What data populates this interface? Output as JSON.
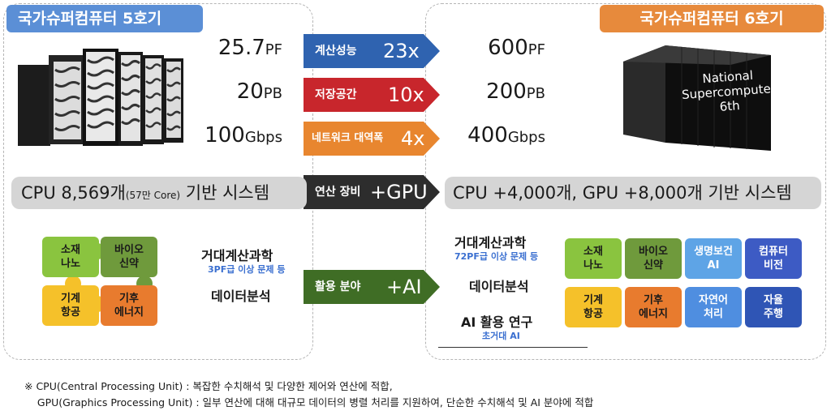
{
  "left": {
    "title": "국가슈퍼컴퓨터 5호기",
    "specs": [
      {
        "num": "25.7",
        "unit": "PF"
      },
      {
        "num": "20",
        "unit": "PB"
      },
      {
        "num": "100",
        "unit": "Gbps"
      }
    ],
    "system": {
      "main": "CPU 8,569개",
      "small": "(57만 Core)",
      "tail": " 기반 시스템"
    },
    "puzzle": [
      {
        "label": "소재\n나노",
        "color": "#8ac43f"
      },
      {
        "label": "바이오\n신약",
        "color": "#6f9a3c"
      },
      {
        "label": "기계\n항공",
        "color": "#f5c12a"
      },
      {
        "label": "기후\n에너지",
        "color": "#e87b2e"
      }
    ],
    "uses": [
      {
        "main": "거대계산과학",
        "sub": "3PF급 이상 문제 등"
      },
      {
        "main": "데이터분석",
        "sub": ""
      }
    ]
  },
  "middle": [
    {
      "label": "계산성능",
      "big": "23x",
      "color": "#2f63b0"
    },
    {
      "label": "저장공간",
      "big": "10x",
      "color": "#c8262c"
    },
    {
      "label": "네트워크 대역폭",
      "big": "4x",
      "color": "#e8862f"
    },
    {
      "label": "연산 장비",
      "big": "+GPU",
      "color": "#2d2d2d"
    },
    {
      "label": "활용 분야",
      "big": "+AI",
      "color": "#3f6d25"
    }
  ],
  "right": {
    "title": "국가슈퍼컴퓨터 6호기",
    "server_text": [
      "National",
      "Supercomputer",
      "6th"
    ],
    "specs": [
      {
        "num": "600",
        "unit": "PF"
      },
      {
        "num": "200",
        "unit": "PB"
      },
      {
        "num": "400",
        "unit": "Gbps"
      }
    ],
    "system": "CPU +4,000개, GPU +8,000개 기반 시스템",
    "uses": [
      {
        "main": "거대계산과학",
        "sub": "72PF급 이상 문제 등"
      },
      {
        "main": "데이터분석",
        "sub": ""
      },
      {
        "main": "AI 활용 연구",
        "sub": "초거대 AI"
      }
    ],
    "puzzle": [
      {
        "label": "소재\n나노",
        "color": "#8ac43f"
      },
      {
        "label": "바이오\n신약",
        "color": "#6f9a3c"
      },
      {
        "label": "생명보건\nAI",
        "color": "#5ea4e6"
      },
      {
        "label": "컴퓨터\n비전",
        "color": "#3d5bc4"
      },
      {
        "label": "기계\n항공",
        "color": "#f5c12a"
      },
      {
        "label": "기후\n에너지",
        "color": "#e87b2e"
      },
      {
        "label": "자연어\n처리",
        "color": "#4f8ee0"
      },
      {
        "label": "자율\n주행",
        "color": "#2f55b5"
      }
    ]
  },
  "footnote": [
    "※ CPU(Central Processing Unit) : 복잡한 수치해석 및 다양한 제어와 연산에 적합,",
    "    GPU(Graphics Processing Unit) : 일부 연산에 대해 대규모 데이터의 병렬 처리를 지원하여, 단순한 수치해석 및 AI 분야에 적합"
  ]
}
